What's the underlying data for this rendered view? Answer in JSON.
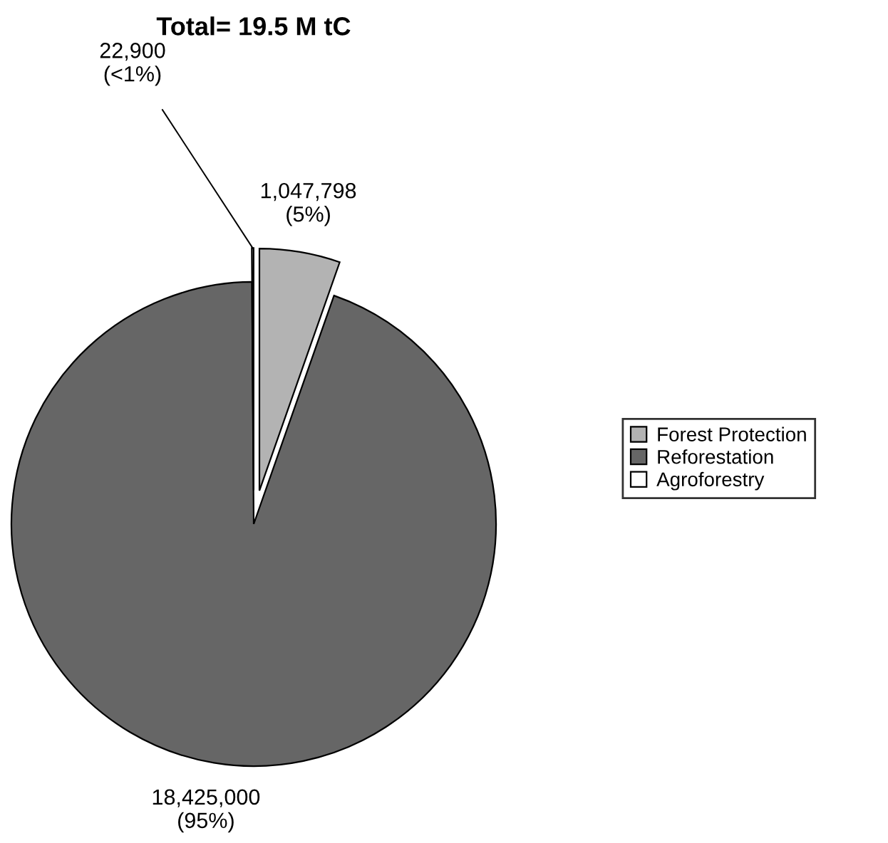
{
  "chart_data": {
    "type": "pie",
    "title": "Total= 19.5 M tC",
    "categories": [
      "Forest Protection",
      "Reforestation",
      "Agroforestry"
    ],
    "values": [
      1047798,
      18425000,
      22900
    ],
    "value_labels": [
      "1,047,798\n(5%)",
      "18,425,000\n(95%)",
      "22,900\n(<1%)"
    ],
    "colors": [
      "#b3b3b3",
      "#666666",
      "#ffffff"
    ],
    "legend": "right"
  }
}
